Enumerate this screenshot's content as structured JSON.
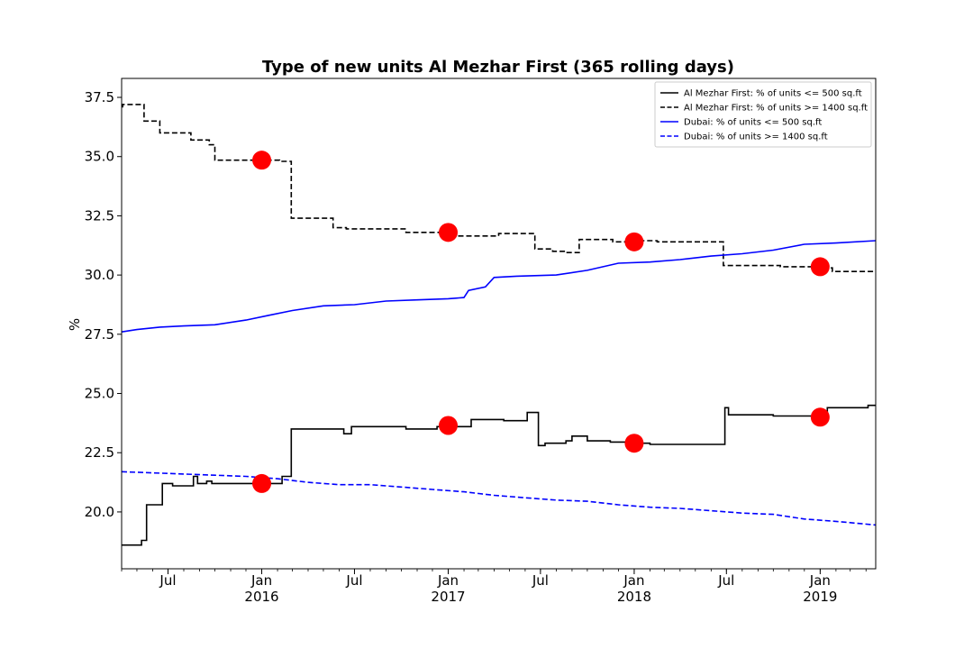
{
  "chart_data": {
    "type": "line",
    "title": "Type of new units Al Mezhar First (365 rolling days)",
    "xlabel": "",
    "ylabel": "%",
    "x_range": [
      "2015-04-01",
      "2019-04-20"
    ],
    "ylim": [
      17.6,
      38.3
    ],
    "grid": false,
    "legend_position": "top-right",
    "y_ticks": [
      {
        "value": 20.0,
        "label": "20.0"
      },
      {
        "value": 22.5,
        "label": "22.5"
      },
      {
        "value": 25.0,
        "label": "25.0"
      },
      {
        "value": 27.5,
        "label": "27.5"
      },
      {
        "value": 30.0,
        "label": "30.0"
      },
      {
        "value": 32.5,
        "label": "32.5"
      },
      {
        "value": 35.0,
        "label": "35.0"
      },
      {
        "value": 37.5,
        "label": "37.5"
      }
    ],
    "x_ticks": [
      {
        "date": "2015-07-01",
        "label": "Jul",
        "sublabel": ""
      },
      {
        "date": "2016-01-01",
        "label": "Jan",
        "sublabel": "2016"
      },
      {
        "date": "2016-07-01",
        "label": "Jul",
        "sublabel": ""
      },
      {
        "date": "2017-01-01",
        "label": "Jan",
        "sublabel": "2017"
      },
      {
        "date": "2017-07-01",
        "label": "Jul",
        "sublabel": ""
      },
      {
        "date": "2018-01-01",
        "label": "Jan",
        "sublabel": "2018"
      },
      {
        "date": "2018-07-01",
        "label": "Jul",
        "sublabel": ""
      },
      {
        "date": "2019-01-01",
        "label": "Jan",
        "sublabel": "2019"
      }
    ],
    "series": [
      {
        "name": "Al Mezhar First: % of units <= 500 sq.ft",
        "color": "#000000",
        "style": "solid",
        "step": true,
        "points": [
          [
            "2015-04-01",
            18.6
          ],
          [
            "2015-05-10",
            18.8
          ],
          [
            "2015-05-20",
            20.3
          ],
          [
            "2015-06-20",
            21.2
          ],
          [
            "2015-07-10",
            21.1
          ],
          [
            "2015-08-20",
            21.5
          ],
          [
            "2015-08-28",
            21.2
          ],
          [
            "2015-09-15",
            21.3
          ],
          [
            "2015-09-25",
            21.2
          ],
          [
            "2016-02-10",
            21.5
          ],
          [
            "2016-02-28",
            23.5
          ],
          [
            "2016-06-10",
            23.3
          ],
          [
            "2016-06-25",
            23.6
          ],
          [
            "2016-10-10",
            23.5
          ],
          [
            "2016-12-10",
            23.6
          ],
          [
            "2017-02-15",
            23.9
          ],
          [
            "2017-04-20",
            23.85
          ],
          [
            "2017-06-05",
            24.2
          ],
          [
            "2017-06-27",
            22.8
          ],
          [
            "2017-07-10",
            22.9
          ],
          [
            "2017-08-20",
            23.0
          ],
          [
            "2017-09-01",
            23.2
          ],
          [
            "2017-10-01",
            23.0
          ],
          [
            "2017-11-15",
            22.95
          ],
          [
            "2018-01-10",
            22.9
          ],
          [
            "2018-02-01",
            22.85
          ],
          [
            "2018-06-28",
            24.4
          ],
          [
            "2018-07-05",
            24.1
          ],
          [
            "2018-10-01",
            24.05
          ],
          [
            "2019-01-15",
            24.4
          ],
          [
            "2019-04-05",
            24.5
          ],
          [
            "2019-04-20",
            24.5
          ]
        ]
      },
      {
        "name": "Al Mezhar First: % of units >= 1400 sq.ft",
        "color": "#000000",
        "style": "dashed",
        "step": true,
        "points": [
          [
            "2015-04-01",
            37.1
          ],
          [
            "2015-04-03",
            37.2
          ],
          [
            "2015-05-15",
            36.5
          ],
          [
            "2015-06-15",
            36.0
          ],
          [
            "2015-08-15",
            35.7
          ],
          [
            "2015-09-20",
            35.5
          ],
          [
            "2015-10-01",
            34.85
          ],
          [
            "2016-02-05",
            34.8
          ],
          [
            "2016-02-28",
            32.4
          ],
          [
            "2016-05-20",
            32.0
          ],
          [
            "2016-06-15",
            31.95
          ],
          [
            "2016-10-10",
            31.8
          ],
          [
            "2016-12-20",
            31.75
          ],
          [
            "2017-01-15",
            31.65
          ],
          [
            "2017-04-10",
            31.75
          ],
          [
            "2017-06-20",
            31.1
          ],
          [
            "2017-07-25",
            31.0
          ],
          [
            "2017-08-20",
            30.95
          ],
          [
            "2017-09-15",
            31.5
          ],
          [
            "2017-11-20",
            31.4
          ],
          [
            "2018-01-10",
            31.45
          ],
          [
            "2018-02-15",
            31.4
          ],
          [
            "2018-06-25",
            30.4
          ],
          [
            "2018-10-15",
            30.35
          ],
          [
            "2019-01-15",
            30.3
          ],
          [
            "2019-01-25",
            30.15
          ],
          [
            "2019-04-20",
            30.15
          ]
        ]
      },
      {
        "name": "Dubai: % of units <= 500 sq.ft",
        "color": "#0000ff",
        "style": "solid",
        "step": false,
        "points": [
          [
            "2015-04-01",
            27.6
          ],
          [
            "2015-05-01",
            27.7
          ],
          [
            "2015-06-15",
            27.8
          ],
          [
            "2015-08-01",
            27.85
          ],
          [
            "2015-10-01",
            27.9
          ],
          [
            "2015-12-01",
            28.1
          ],
          [
            "2016-01-15",
            28.3
          ],
          [
            "2016-03-01",
            28.5
          ],
          [
            "2016-05-01",
            28.7
          ],
          [
            "2016-07-01",
            28.75
          ],
          [
            "2016-09-01",
            28.9
          ],
          [
            "2016-11-01",
            28.95
          ],
          [
            "2017-01-01",
            29.0
          ],
          [
            "2017-02-01",
            29.05
          ],
          [
            "2017-02-10",
            29.35
          ],
          [
            "2017-03-15",
            29.5
          ],
          [
            "2017-04-01",
            29.9
          ],
          [
            "2017-05-15",
            29.95
          ],
          [
            "2017-08-01",
            30.0
          ],
          [
            "2017-10-01",
            30.2
          ],
          [
            "2017-12-01",
            30.5
          ],
          [
            "2018-02-01",
            30.55
          ],
          [
            "2018-04-01",
            30.65
          ],
          [
            "2018-06-01",
            30.8
          ],
          [
            "2018-08-01",
            30.9
          ],
          [
            "2018-10-01",
            31.05
          ],
          [
            "2018-12-01",
            31.3
          ],
          [
            "2019-02-01",
            31.35
          ],
          [
            "2019-04-20",
            31.45
          ]
        ]
      },
      {
        "name": "Dubai: % of units >= 1400 sq.ft",
        "color": "#0000ff",
        "style": "dashed",
        "step": false,
        "points": [
          [
            "2015-04-01",
            21.7
          ],
          [
            "2015-06-01",
            21.65
          ],
          [
            "2015-08-01",
            21.6
          ],
          [
            "2015-10-01",
            21.55
          ],
          [
            "2015-12-01",
            21.5
          ],
          [
            "2016-02-01",
            21.4
          ],
          [
            "2016-04-01",
            21.25
          ],
          [
            "2016-06-01",
            21.15
          ],
          [
            "2016-08-01",
            21.15
          ],
          [
            "2016-10-01",
            21.05
          ],
          [
            "2016-12-01",
            20.95
          ],
          [
            "2017-02-01",
            20.85
          ],
          [
            "2017-04-01",
            20.7
          ],
          [
            "2017-06-01",
            20.6
          ],
          [
            "2017-08-01",
            20.5
          ],
          [
            "2017-10-01",
            20.45
          ],
          [
            "2017-12-01",
            20.3
          ],
          [
            "2018-02-01",
            20.2
          ],
          [
            "2018-04-01",
            20.15
          ],
          [
            "2018-06-01",
            20.05
          ],
          [
            "2018-08-01",
            19.95
          ],
          [
            "2018-10-01",
            19.9
          ],
          [
            "2018-12-01",
            19.7
          ],
          [
            "2019-02-01",
            19.6
          ],
          [
            "2019-04-20",
            19.45
          ]
        ]
      }
    ],
    "markers": [
      {
        "date": "2016-01-01",
        "value": 34.85,
        "color": "#ff0000"
      },
      {
        "date": "2017-01-01",
        "value": 31.8,
        "color": "#ff0000"
      },
      {
        "date": "2018-01-01",
        "value": 31.4,
        "color": "#ff0000"
      },
      {
        "date": "2019-01-01",
        "value": 30.35,
        "color": "#ff0000"
      },
      {
        "date": "2016-01-01",
        "value": 21.2,
        "color": "#ff0000"
      },
      {
        "date": "2017-01-01",
        "value": 23.65,
        "color": "#ff0000"
      },
      {
        "date": "2018-01-01",
        "value": 22.9,
        "color": "#ff0000"
      },
      {
        "date": "2019-01-01",
        "value": 24.0,
        "color": "#ff0000"
      }
    ]
  }
}
